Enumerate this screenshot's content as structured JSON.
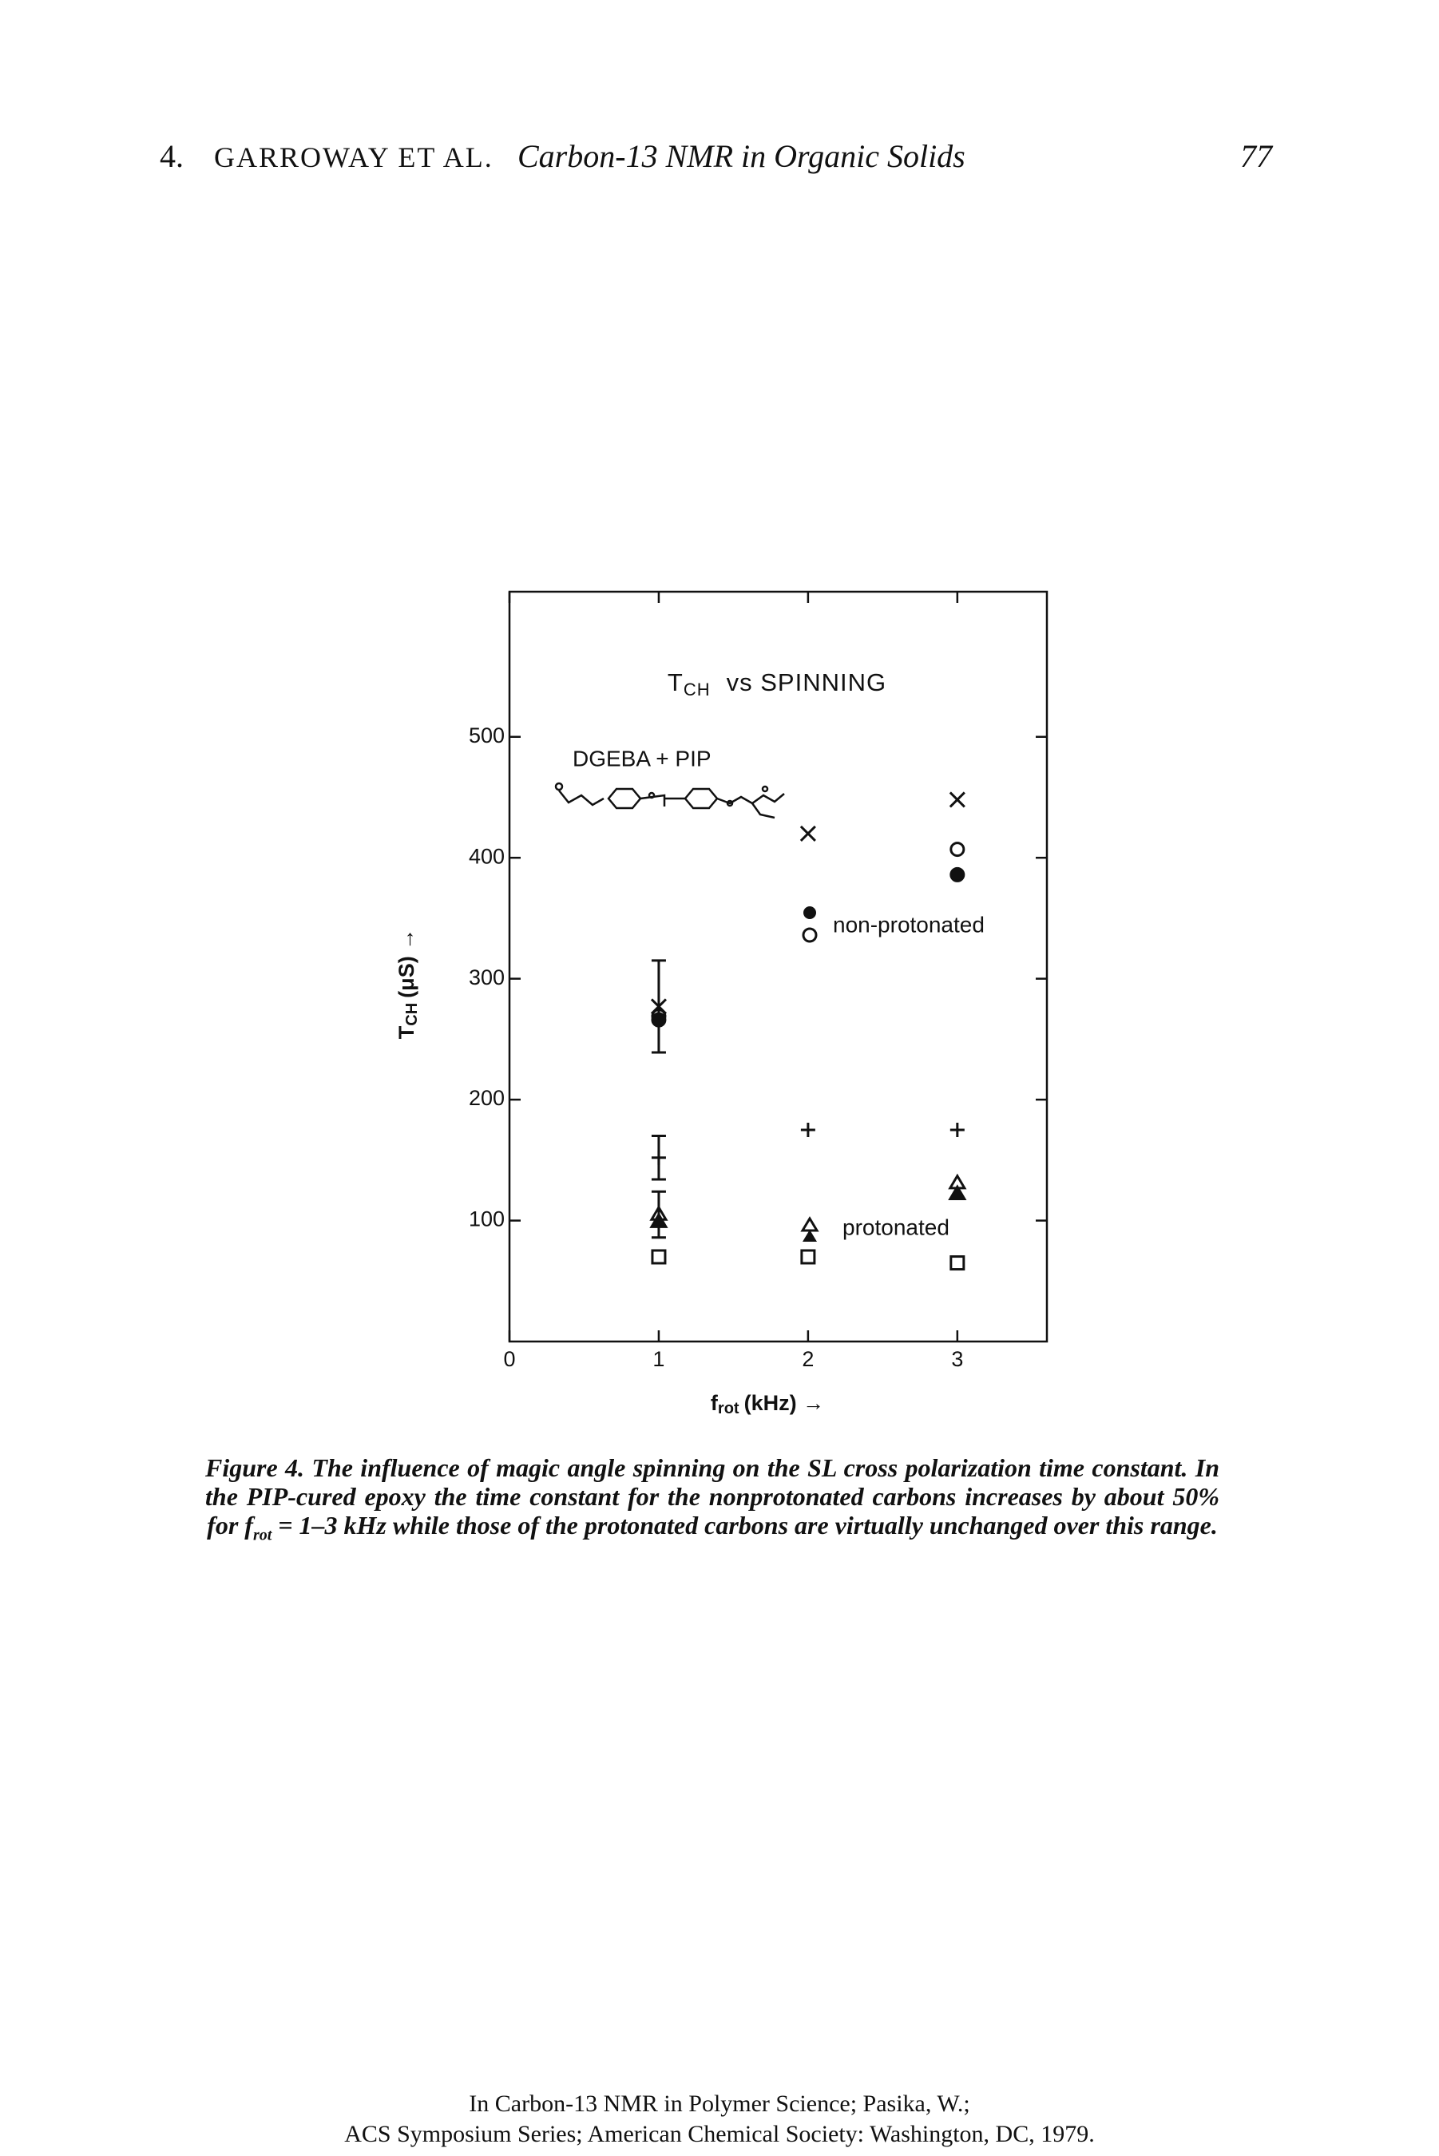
{
  "header": {
    "chapter": "4.",
    "authors": "GARROWAY ET AL.",
    "title": "Carbon-13 NMR in Organic Solids",
    "page": "77"
  },
  "chart_data": {
    "type": "scatter",
    "title": {
      "main": "T",
      "sub": "CH",
      "rest": "vs SPINNING"
    },
    "x_label": {
      "main": "f",
      "sub": "rot",
      "rest": "(kHz) →"
    },
    "y_label": {
      "main": "T",
      "sub": "CH",
      "rest": "(μS) →"
    },
    "annotations": {
      "sample": "DGEBA + PIP",
      "non_protonated": "non-protonated",
      "protonated": "protonated"
    },
    "x": [
      1,
      2,
      3
    ],
    "series": [
      {
        "marker": "cross",
        "color": "#111111",
        "values": [
          277,
          420,
          448
        ],
        "errors": [
          38,
          null,
          null
        ]
      },
      {
        "marker": "open-circle",
        "color": "#111111",
        "values": [
          269,
          null,
          407
        ]
      },
      {
        "marker": "filled-circle",
        "color": "#111111",
        "values": [
          266,
          null,
          386
        ]
      },
      {
        "marker": "plus",
        "color": "#111111",
        "values": [
          152,
          175,
          175
        ],
        "errors": [
          18,
          null,
          null
        ]
      },
      {
        "marker": "open-triangle",
        "color": "#111111",
        "values": [
          105,
          null,
          131
        ],
        "errors": [
          19,
          null,
          null
        ]
      },
      {
        "marker": "filled-triangle",
        "color": "#111111",
        "values": [
          99,
          null,
          122
        ]
      },
      {
        "marker": "open-square",
        "color": "#111111",
        "values": [
          70,
          70,
          65
        ]
      }
    ],
    "xlim": [
      0,
      3.6
    ],
    "ylim": [
      0,
      620
    ],
    "xticks": [
      0,
      1,
      2,
      3
    ],
    "yticks": [
      100,
      200,
      300,
      400,
      500
    ],
    "grid": false
  },
  "caption": {
    "label": "Figure 4.",
    "text1": "The influence of magic angle spinning on the SL cross polarization time constant. In the PIP-cured epoxy the time constant for the nonprotonated carbons increases by about 50% for",
    "f": "f",
    "sub": "rot",
    "text2": "= 1–3 kHz while those of the protonated carbons are virtually unchanged over this range."
  },
  "footer": {
    "line1": "In Carbon-13 NMR in Polymer Science; Pasika, W.;",
    "line2": "ACS Symposium Series; American Chemical Society: Washington, DC, 1979."
  }
}
